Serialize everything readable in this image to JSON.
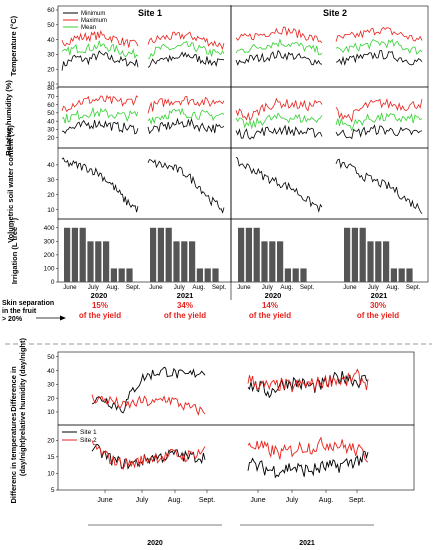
{
  "chart_data": [
    {
      "type": "line",
      "sites": [
        "Site 1",
        "Site 2"
      ],
      "years": [
        "2020",
        "2021"
      ],
      "ylabel": "Temperature (°C)",
      "ylim": [
        10,
        60
      ],
      "yticks": [
        "10",
        "20",
        "30",
        "40",
        "50",
        "60"
      ],
      "legend": [
        "Minimum",
        "Maximum",
        "Mean"
      ],
      "series": [
        {
          "name": "Minimum",
          "color": "#000000",
          "site1": [
            22,
            28,
            26,
            30,
            27,
            25,
            24
          ],
          "site2": [
            24,
            27,
            28,
            30,
            29,
            26,
            25
          ]
        },
        {
          "name": "Maximum",
          "color": "#e8231d",
          "site1": [
            38,
            41,
            42,
            43,
            41,
            38,
            36
          ],
          "site2": [
            40,
            42,
            44,
            47,
            45,
            42,
            39
          ]
        },
        {
          "name": "Mean",
          "color": "#33d233",
          "site1": [
            30,
            34,
            34,
            36,
            34,
            31,
            30
          ],
          "site2": [
            32,
            34,
            36,
            38,
            37,
            34,
            32
          ]
        }
      ]
    },
    {
      "type": "line",
      "ylabel": "Relative humidity (%)",
      "ylim": [
        10,
        80
      ],
      "yticks": [
        "20",
        "30",
        "40",
        "50",
        "60",
        "70",
        "80"
      ],
      "series": [
        {
          "name": "Minimum",
          "color": "#000000",
          "site1": [
            30,
            32,
            36,
            38,
            34,
            32,
            30
          ],
          "site2": [
            26,
            24,
            28,
            30,
            28,
            26,
            26
          ]
        },
        {
          "name": "Maximum",
          "color": "#e8231d",
          "site1": [
            55,
            62,
            65,
            66,
            64,
            62,
            68
          ],
          "site2": [
            52,
            44,
            58,
            62,
            60,
            58,
            62
          ]
        },
        {
          "name": "Mean",
          "color": "#33d233",
          "site1": [
            42,
            46,
            50,
            50,
            48,
            46,
            48
          ],
          "site2": [
            40,
            34,
            42,
            44,
            44,
            42,
            44
          ]
        }
      ]
    },
    {
      "type": "line",
      "ylabel": "Volumetric soil water content (%)",
      "ylim": [
        5,
        50
      ],
      "yticks": [
        "10",
        "20",
        "30",
        "40"
      ],
      "series": [
        {
          "name": "Soil water",
          "color": "#000000",
          "site1": [
            42,
            40,
            38,
            34,
            26,
            16,
            10
          ],
          "site2": [
            42,
            38,
            32,
            28,
            24,
            16,
            10
          ]
        }
      ]
    },
    {
      "type": "bar",
      "ylabel": "Irrigation (L tree⁻¹)",
      "ylim": [
        0,
        450
      ],
      "yticks": [
        "0",
        "100",
        "200",
        "300",
        "400"
      ],
      "xticks": [
        "June",
        "July",
        "Aug.",
        "Sept."
      ],
      "values": [
        400,
        400,
        400,
        300,
        300,
        300,
        100,
        100,
        100
      ],
      "year_labels": [
        "2020",
        "2021",
        "2020",
        "2021"
      ],
      "skin_label": "Skin separation in the fruit > 20%",
      "skin_values": [
        {
          "pct": "15%",
          "text": "of the yield"
        },
        {
          "pct": "34%",
          "text": "of the yield"
        },
        {
          "pct": "14%",
          "text": "of the yield"
        },
        {
          "pct": "30%",
          "text": "of the yield"
        }
      ]
    },
    {
      "type": "line",
      "ylabel": "Difference in relative humidity (day/night)",
      "ylim": [
        2,
        52
      ],
      "yticks": [
        "10",
        "20",
        "30",
        "40",
        "50"
      ],
      "series": [
        {
          "name": "Site 1",
          "color": "#000000",
          "y2020": [
            18,
            20,
            16,
            12,
            26,
            35,
            38,
            40,
            38,
            36,
            38,
            40
          ],
          "y2021": [
            30,
            28,
            24,
            30,
            32,
            30,
            28,
            30,
            34,
            36,
            32,
            34
          ]
        },
        {
          "name": "Site 2",
          "color": "#e8231d",
          "y2020": [
            20,
            19,
            18,
            14,
            16,
            18,
            16,
            20,
            18,
            14,
            12,
            10
          ],
          "y2021": [
            34,
            30,
            28,
            30,
            28,
            30,
            30,
            32,
            34,
            32,
            36,
            30
          ]
        }
      ]
    },
    {
      "type": "line",
      "ylabel": "Differenc in temperatures (day/night)",
      "ylim": [
        5,
        24
      ],
      "yticks": [
        "5",
        "10",
        "15",
        "20"
      ],
      "legend": [
        "Site 1",
        "Site 2"
      ],
      "xticks": [
        "June",
        "July",
        "Aug.",
        "Sept."
      ],
      "years": [
        "2020",
        "2021"
      ],
      "series": [
        {
          "name": "Site 1",
          "color": "#000000",
          "y2020": [
            18,
            16,
            14,
            13,
            13,
            14,
            15,
            15,
            16,
            15,
            15,
            15
          ],
          "y2021": [
            13,
            12,
            11,
            11,
            12,
            11,
            11,
            12,
            12,
            13,
            14,
            15
          ]
        },
        {
          "name": "Site 2",
          "color": "#e8231d",
          "y2020": [
            19,
            16,
            14,
            13,
            13,
            14,
            15,
            15,
            16,
            15,
            16,
            17
          ],
          "y2021": [
            19,
            18,
            17,
            16,
            17,
            18,
            18,
            19,
            19,
            18,
            17,
            15
          ]
        }
      ]
    }
  ]
}
